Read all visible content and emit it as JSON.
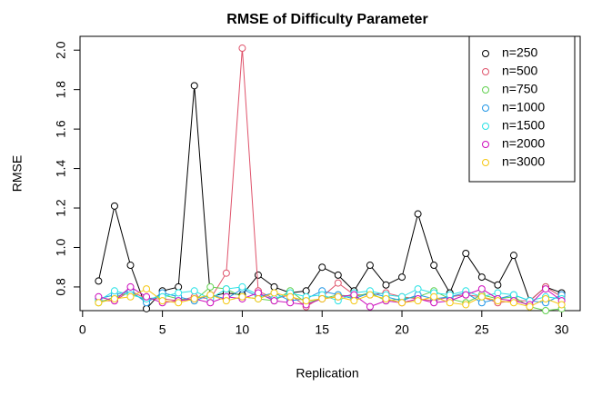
{
  "chart_data": {
    "type": "line",
    "title": "RMSE of Difficulty Parameter",
    "x_label": "Replication",
    "y_label": "RMSE",
    "x": [
      1,
      2,
      3,
      4,
      5,
      6,
      7,
      8,
      9,
      10,
      11,
      12,
      13,
      14,
      15,
      16,
      17,
      18,
      19,
      20,
      21,
      22,
      23,
      24,
      25,
      26,
      27,
      28,
      29,
      30
    ],
    "xlim": [
      -0.16,
      31.16
    ],
    "xticks": [
      0,
      5,
      10,
      15,
      20,
      25,
      30
    ],
    "ylim": [
      0.68,
      2.07
    ],
    "yticks": [
      0.8,
      {
        "value": 1,
        "label": "1.0"
      },
      1.2,
      1.4,
      1.6,
      1.8,
      {
        "value": 2,
        "label": "2.0"
      }
    ],
    "legend": "topright",
    "series": [
      {
        "name": "n=250",
        "color": "#000000",
        "values": [
          0.83,
          1.21,
          0.91,
          0.69,
          0.78,
          0.8,
          1.82,
          0.75,
          0.77,
          0.76,
          0.86,
          0.8,
          0.77,
          0.78,
          0.9,
          0.86,
          0.78,
          0.91,
          0.81,
          0.85,
          1.17,
          0.91,
          0.77,
          0.97,
          0.85,
          0.81,
          0.96,
          0.73,
          0.8,
          0.77
        ]
      },
      {
        "name": "n=500",
        "color": "#DF536B",
        "values": [
          0.73,
          0.73,
          0.78,
          0.74,
          0.74,
          0.73,
          0.75,
          0.74,
          0.87,
          2.01,
          0.78,
          0.74,
          0.76,
          0.7,
          0.75,
          0.82,
          0.76,
          0.76,
          0.77,
          0.75,
          0.74,
          0.73,
          0.75,
          0.76,
          0.75,
          0.72,
          0.73,
          0.73,
          0.8,
          0.75
        ]
      },
      {
        "name": "n=750",
        "color": "#61D04F",
        "values": [
          0.72,
          0.75,
          0.77,
          0.73,
          0.76,
          0.74,
          0.73,
          0.8,
          0.79,
          0.75,
          0.74,
          0.73,
          0.78,
          0.72,
          0.74,
          0.76,
          0.75,
          0.77,
          0.73,
          0.74,
          0.75,
          0.78,
          0.74,
          0.72,
          0.76,
          0.74,
          0.75,
          0.7,
          0.68,
          0.69
        ]
      },
      {
        "name": "n=1000",
        "color": "#2297E6",
        "values": [
          0.74,
          0.76,
          0.78,
          0.72,
          0.77,
          0.75,
          0.73,
          0.76,
          0.74,
          0.79,
          0.75,
          0.77,
          0.73,
          0.74,
          0.78,
          0.76,
          0.74,
          0.77,
          0.75,
          0.73,
          0.76,
          0.74,
          0.75,
          0.77,
          0.72,
          0.74,
          0.76,
          0.73,
          0.72,
          0.76
        ]
      },
      {
        "name": "n=1500",
        "color": "#28E2E5",
        "values": [
          0.73,
          0.78,
          0.76,
          0.74,
          0.75,
          0.77,
          0.78,
          0.74,
          0.79,
          0.8,
          0.76,
          0.74,
          0.77,
          0.75,
          0.76,
          0.73,
          0.77,
          0.78,
          0.76,
          0.75,
          0.79,
          0.77,
          0.76,
          0.78,
          0.75,
          0.77,
          0.76,
          0.73,
          0.75,
          0.74
        ]
      },
      {
        "name": "n=2000",
        "color": "#CD0BBC",
        "values": [
          0.75,
          0.73,
          0.8,
          0.75,
          0.72,
          0.73,
          0.74,
          0.72,
          0.75,
          0.74,
          0.77,
          0.73,
          0.72,
          0.71,
          0.74,
          0.75,
          0.76,
          0.7,
          0.73,
          0.72,
          0.74,
          0.72,
          0.73,
          0.76,
          0.79,
          0.74,
          0.73,
          0.71,
          0.79,
          0.73
        ]
      },
      {
        "name": "n=3000",
        "color": "#F5C710",
        "values": [
          0.72,
          0.74,
          0.75,
          0.79,
          0.73,
          0.72,
          0.74,
          0.76,
          0.73,
          0.75,
          0.74,
          0.77,
          0.75,
          0.73,
          0.74,
          0.75,
          0.73,
          0.76,
          0.74,
          0.72,
          0.73,
          0.75,
          0.72,
          0.71,
          0.75,
          0.73,
          0.72,
          0.7,
          0.74,
          0.71
        ]
      }
    ]
  }
}
